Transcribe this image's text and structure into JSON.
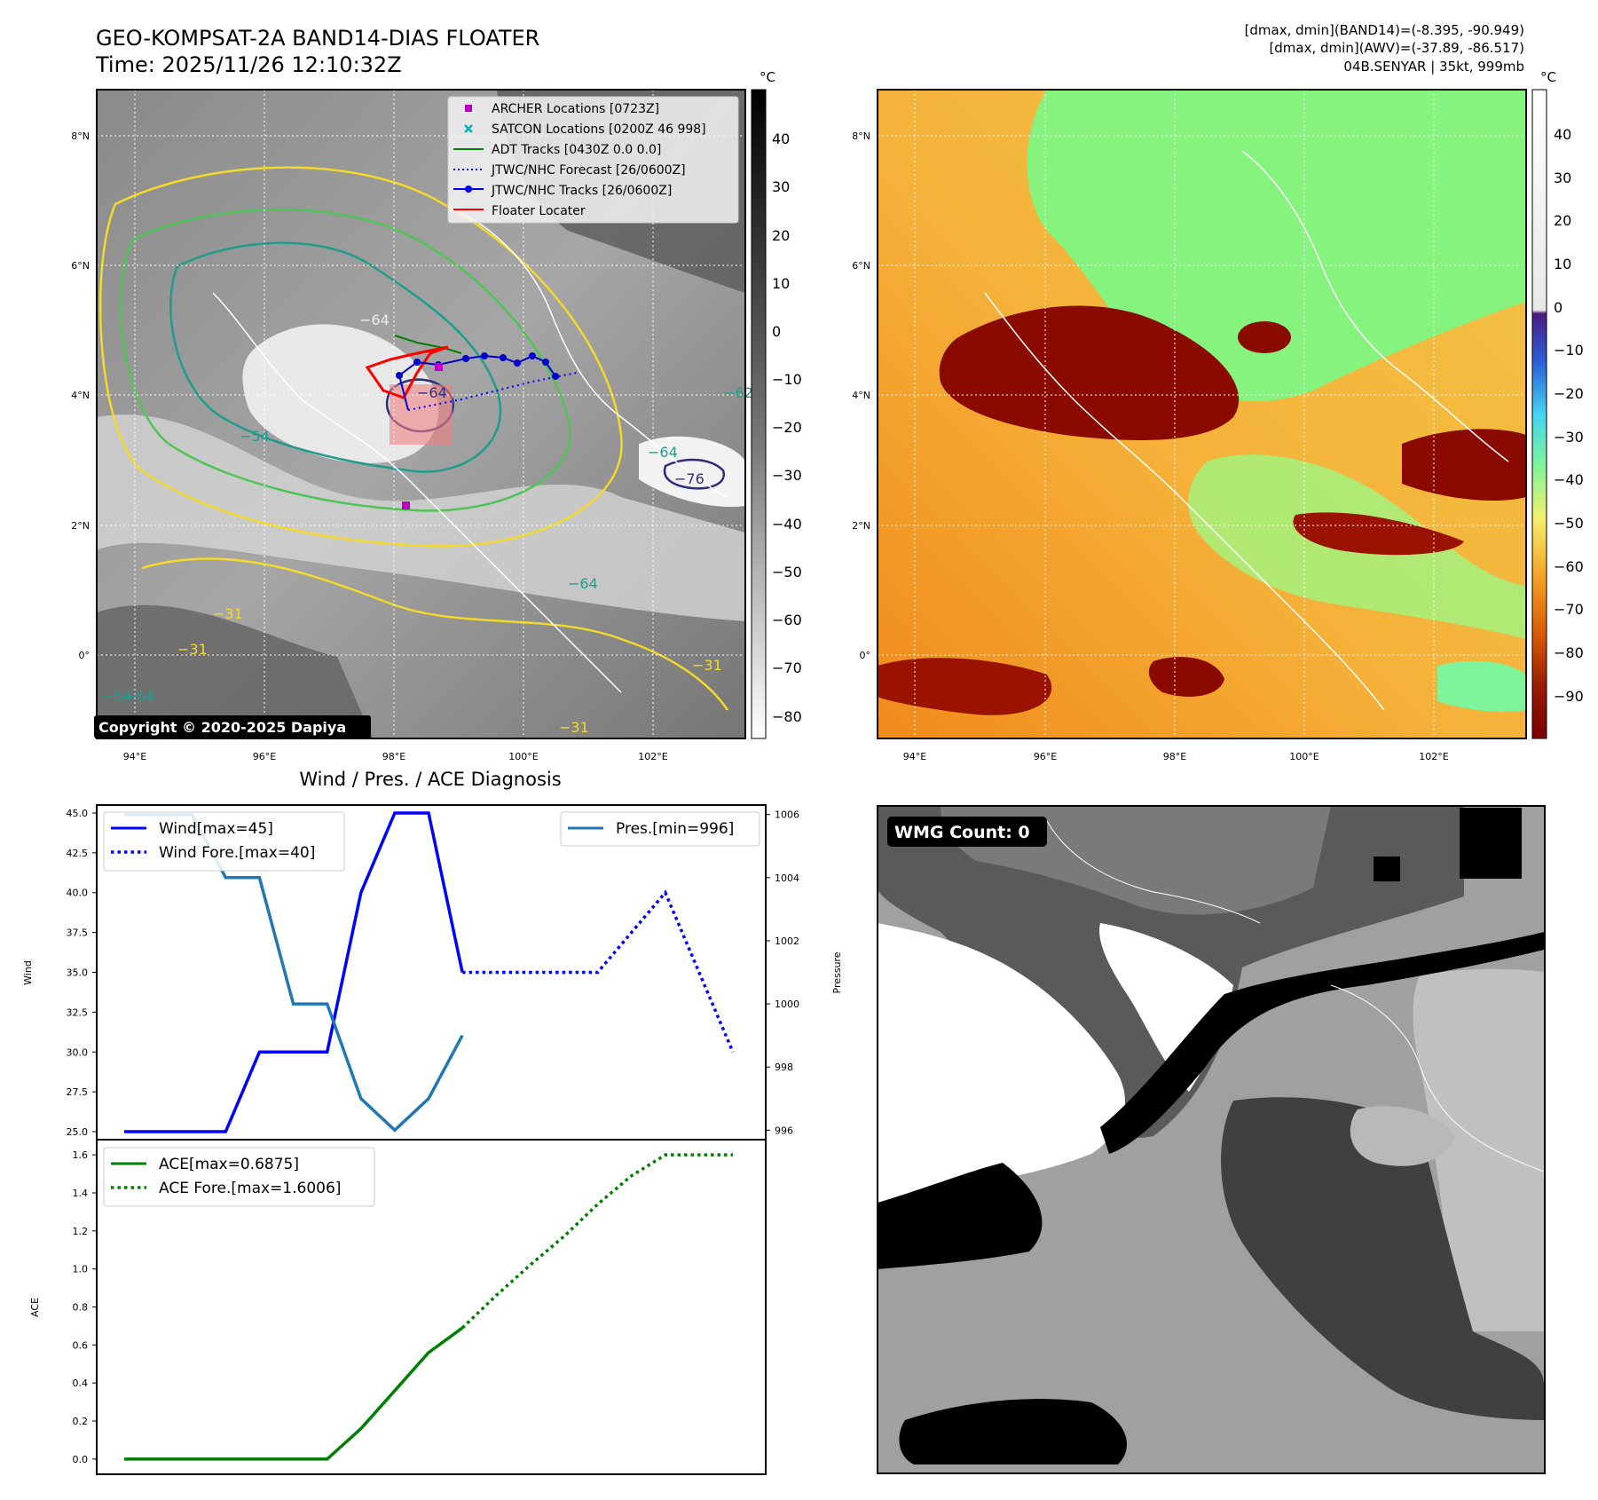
{
  "header": {
    "title_line1": "GEO-KOMPSAT-2A BAND14-DIAS FLOATER",
    "title_line2": "Time: 2025/11/26 12:10:32Z",
    "stats_line1": "[dmax, dmin](BAND14)=(-8.395, -90.949)",
    "stats_line2": "[dmax, dmin](AWV)=(-37.89, -86.517)",
    "stats_line3": "04B.SENYAR | 35kt, 999mb"
  },
  "map_axes": {
    "lon_ticks": [
      "94°E",
      "96°E",
      "98°E",
      "100°E",
      "102°E"
    ],
    "lat_ticks": [
      "8°N",
      "6°N",
      "4°N",
      "2°N",
      "0°"
    ]
  },
  "ir_panel": {
    "legend": [
      {
        "label": "ARCHER Locations [0723Z]",
        "color": "#c000c0",
        "marker": "square"
      },
      {
        "label": "SATCON Locations [0200Z 46 998]",
        "color": "#00b5b5",
        "marker": "x"
      },
      {
        "label": "ADT Tracks [0430Z 0.0 0.0]",
        "color": "#008000",
        "marker": "line"
      },
      {
        "label": "JTWC/NHC Forecast [26/0600Z]",
        "color": "#0000ff",
        "marker": "dotted"
      },
      {
        "label": "JTWC/NHC Tracks [26/0600Z]",
        "color": "#0000ff",
        "marker": "line-dot"
      },
      {
        "label": "Floater Locater",
        "color": "#ff0000",
        "marker": "line"
      }
    ],
    "colorbar_unit": "°C",
    "colorbar_ticks": [
      "40",
      "30",
      "20",
      "10",
      "0",
      "−10",
      "−20",
      "−30",
      "−40",
      "−50",
      "−60",
      "−70",
      "−80"
    ],
    "contour_labels": [
      "−64",
      "−54",
      "−64",
      "−76",
      "−62",
      "−64",
      "−31",
      "−31",
      "−54",
      "−64",
      "−31",
      "−31",
      "−64"
    ],
    "copyright": "Copyright © 2020-2025 Dapiya",
    "track_color": "#0000cc",
    "floater_color": "#ff0000",
    "gray_min": "#f2f2f2",
    "gray_max": "#202020"
  },
  "awv_panel": {
    "colorbar_unit": "°C",
    "colorbar_ticks": [
      "40",
      "30",
      "20",
      "10",
      "0",
      "−10",
      "−20",
      "−30",
      "−40",
      "−50",
      "−60",
      "−70",
      "−80",
      "−90"
    ]
  },
  "diag_panel": {
    "title": "Wind / Pres. / ACE Diagnosis",
    "wind_ylabel": "Wind",
    "pres_ylabel": "Pressure",
    "ace_ylabel": "ACE",
    "wind_legend": [
      "Wind[max=45]",
      "Wind Fore.[max=40]"
    ],
    "pres_legend": [
      "Pres.[min=996]"
    ],
    "ace_legend": [
      "ACE[max=0.6875]",
      "ACE Fore.[max=1.6006]"
    ]
  },
  "wmg_panel": {
    "label": "WMG Count: 0"
  },
  "chart_data": [
    {
      "type": "line",
      "name": "wind",
      "x": [
        0,
        1,
        2,
        3,
        4,
        5,
        6,
        7,
        8,
        9,
        10,
        11,
        12,
        13,
        14,
        15,
        16,
        17,
        18
      ],
      "series": [
        {
          "name": "Wind[max=45]",
          "style": "solid",
          "color": "#0000ff",
          "x": [
            0,
            1,
            2,
            3,
            4,
            5,
            6,
            7,
            8,
            9,
            10
          ],
          "values": [
            25,
            25,
            25,
            25,
            30,
            30,
            30,
            40,
            45,
            45,
            35
          ]
        },
        {
          "name": "Wind Fore.[max=40]",
          "style": "dotted",
          "color": "#0000ff",
          "x": [
            10,
            11,
            12,
            13,
            14,
            15,
            16,
            17,
            18
          ],
          "values": [
            35,
            35,
            35,
            35,
            35,
            37.5,
            40,
            35,
            30
          ]
        }
      ],
      "ylim": [
        24.5,
        45.5
      ],
      "yticks": [
        "25.0",
        "27.5",
        "30.0",
        "32.5",
        "35.0",
        "37.5",
        "40.0",
        "42.5",
        "45.0"
      ]
    },
    {
      "type": "line",
      "name": "pressure",
      "series": [
        {
          "name": "Pres.[min=996]",
          "style": "solid",
          "color": "#1f77b4",
          "x": [
            0,
            1,
            2,
            3,
            4,
            5,
            6,
            7,
            8,
            9,
            10
          ],
          "values": [
            1006,
            1006,
            1006,
            1004,
            1004,
            1000,
            1000,
            997,
            996,
            997,
            999
          ]
        }
      ],
      "ylim": [
        995.7,
        1006.3
      ],
      "yticks": [
        "996",
        "998",
        "1000",
        "1002",
        "1004",
        "1006"
      ]
    },
    {
      "type": "line",
      "name": "ace",
      "series": [
        {
          "name": "ACE[max=0.6875]",
          "style": "solid",
          "color": "#008000",
          "x": [
            0,
            1,
            2,
            3,
            4,
            5,
            6,
            7,
            8,
            9,
            10
          ],
          "values": [
            0,
            0,
            0,
            0,
            0,
            0,
            0,
            0.16,
            0.36,
            0.56,
            0.69
          ]
        },
        {
          "name": "ACE Fore.[max=1.6006]",
          "style": "dotted",
          "color": "#008000",
          "x": [
            10,
            11,
            12,
            13,
            14,
            15,
            16,
            17,
            18
          ],
          "values": [
            0.69,
            0.86,
            1.02,
            1.17,
            1.34,
            1.49,
            1.6,
            1.6,
            1.6
          ]
        }
      ],
      "ylim": [
        -0.08,
        1.68
      ],
      "yticks": [
        "0.0",
        "0.2",
        "0.4",
        "0.6",
        "0.8",
        "1.0",
        "1.2",
        "1.4",
        "1.6"
      ]
    }
  ]
}
